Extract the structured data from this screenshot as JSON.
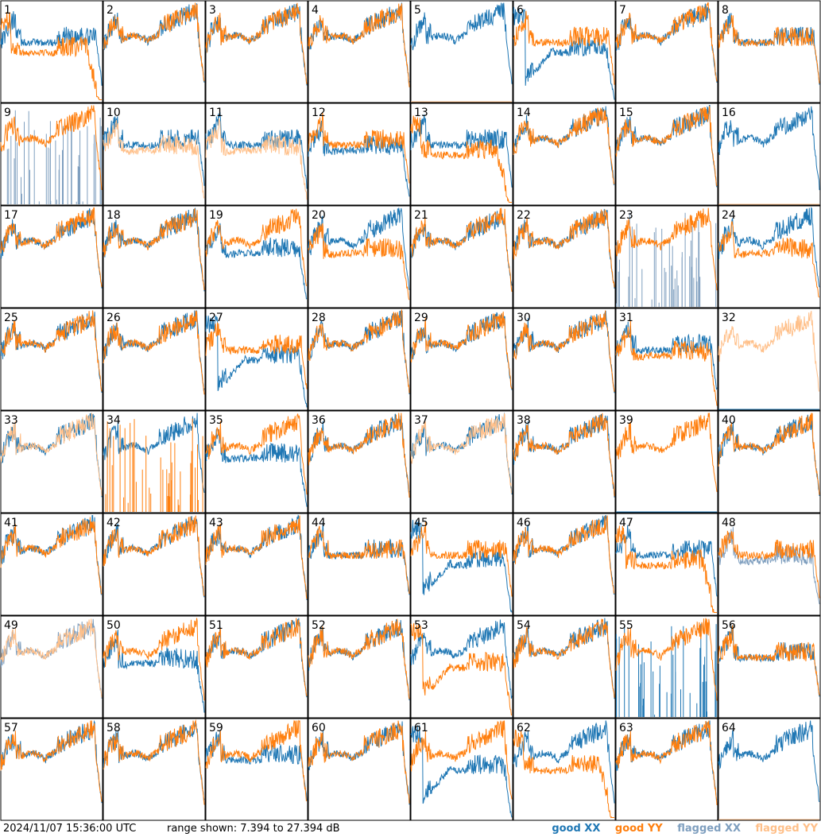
{
  "footer": {
    "timestamp": "2024/11/07 15:36:00 UTC",
    "range_text": "range shown: 7.394 to 27.394 dB"
  },
  "legend": {
    "good_xx": "good XX",
    "good_yy": "good YY",
    "flagged_xx": "flagged XX",
    "flagged_yy": "flagged YY"
  },
  "colors": {
    "good_xx": "#1f77b4",
    "good_yy": "#ff7f0e",
    "flagged_xx": "#7f9fbf",
    "flagged_yy": "#ffc08a",
    "frame": "#000000"
  },
  "chart_data": {
    "type": "line",
    "grid": "8x8 small multiples",
    "ylim": [
      7.394,
      27.394
    ],
    "yunit": "dB",
    "panels": [
      {
        "id": "1",
        "xx": "mid",
        "yy": "cliff"
      },
      {
        "id": "2",
        "xx": "std",
        "yy": "std"
      },
      {
        "id": "3",
        "xx": "std",
        "yy": "std"
      },
      {
        "id": "4",
        "xx": "std",
        "yy": "std"
      },
      {
        "id": "5",
        "xx": "std",
        "yy": "dead",
        "yy_flag": true
      },
      {
        "id": "6",
        "xx": "deep",
        "yy": "mid"
      },
      {
        "id": "7",
        "xx": "std",
        "yy": "std"
      },
      {
        "id": "8",
        "xx": "mid",
        "yy": "mid"
      },
      {
        "id": "9",
        "xx": "spiky",
        "yy": "std",
        "xx_flag": true
      },
      {
        "id": "10",
        "xx": "mid",
        "yy": "low",
        "yy_flag": true
      },
      {
        "id": "11",
        "xx": "mid",
        "yy": "low",
        "yy_flag": true
      },
      {
        "id": "12",
        "xx": "low",
        "yy": "mid"
      },
      {
        "id": "13",
        "xx": "mid",
        "yy": "cliff"
      },
      {
        "id": "14",
        "xx": "std",
        "yy": "std"
      },
      {
        "id": "15",
        "xx": "std",
        "yy": "std"
      },
      {
        "id": "16",
        "xx": "std",
        "yy": "dead",
        "yy_flag": true
      },
      {
        "id": "17",
        "xx": "std",
        "yy": "std"
      },
      {
        "id": "18",
        "xx": "std",
        "yy": "std"
      },
      {
        "id": "19",
        "xx": "low",
        "yy": "std"
      },
      {
        "id": "20",
        "xx": "std",
        "yy": "low"
      },
      {
        "id": "21",
        "xx": "std",
        "yy": "std"
      },
      {
        "id": "22",
        "xx": "std",
        "yy": "std"
      },
      {
        "id": "23",
        "xx": "spiky",
        "yy": "std",
        "xx_flag": true
      },
      {
        "id": "24",
        "xx": "std",
        "yy": "low"
      },
      {
        "id": "25",
        "xx": "std",
        "yy": "std"
      },
      {
        "id": "26",
        "xx": "std",
        "yy": "std"
      },
      {
        "id": "27",
        "xx": "deep",
        "yy": "mid"
      },
      {
        "id": "28",
        "xx": "std",
        "yy": "std"
      },
      {
        "id": "29",
        "xx": "std",
        "yy": "std"
      },
      {
        "id": "30",
        "xx": "std",
        "yy": "std"
      },
      {
        "id": "31",
        "xx": "mid",
        "yy": "low"
      },
      {
        "id": "32",
        "xx": "dead",
        "yy": "std",
        "yy_flag": true
      },
      {
        "id": "33",
        "xx": "std",
        "yy": "std",
        "yy_flag": true
      },
      {
        "id": "34",
        "xx": "std",
        "yy": "spiky"
      },
      {
        "id": "35",
        "xx": "low",
        "yy": "std"
      },
      {
        "id": "36",
        "xx": "std",
        "yy": "std"
      },
      {
        "id": "37",
        "xx": "std",
        "yy": "std",
        "yy_flag": true
      },
      {
        "id": "38",
        "xx": "std",
        "yy": "std"
      },
      {
        "id": "39",
        "xx": "dead",
        "yy": "std"
      },
      {
        "id": "40",
        "xx": "std",
        "yy": "std"
      },
      {
        "id": "41",
        "xx": "std",
        "yy": "std"
      },
      {
        "id": "42",
        "xx": "std",
        "yy": "std"
      },
      {
        "id": "43",
        "xx": "std",
        "yy": "std"
      },
      {
        "id": "44",
        "xx": "mid",
        "yy": "mid"
      },
      {
        "id": "45",
        "xx": "deep",
        "yy": "mid"
      },
      {
        "id": "46",
        "xx": "std",
        "yy": "std"
      },
      {
        "id": "47",
        "xx": "mid",
        "yy": "cliff"
      },
      {
        "id": "48",
        "xx": "low",
        "yy": "mid",
        "xx_flag": true
      },
      {
        "id": "49",
        "xx": "std",
        "yy": "std",
        "xx_flag": true,
        "yy_flag": true
      },
      {
        "id": "50",
        "xx": "low",
        "yy": "std"
      },
      {
        "id": "51",
        "xx": "std",
        "yy": "std"
      },
      {
        "id": "52",
        "xx": "std",
        "yy": "std"
      },
      {
        "id": "53",
        "xx": "std",
        "yy": "deep"
      },
      {
        "id": "54",
        "xx": "std",
        "yy": "std"
      },
      {
        "id": "55",
        "xx": "spiky",
        "yy": "std"
      },
      {
        "id": "56",
        "xx": "mid",
        "yy": "mid"
      },
      {
        "id": "57",
        "xx": "std",
        "yy": "std"
      },
      {
        "id": "58",
        "xx": "std",
        "yy": "std"
      },
      {
        "id": "59",
        "xx": "mid",
        "yy": "std"
      },
      {
        "id": "60",
        "xx": "std",
        "yy": "std"
      },
      {
        "id": "61",
        "xx": "deep",
        "yy": "std"
      },
      {
        "id": "62",
        "xx": "std",
        "yy": "cliff"
      },
      {
        "id": "63",
        "xx": "std",
        "yy": "std"
      },
      {
        "id": "64",
        "xx": "std",
        "yy": "dead",
        "yy_flag": true
      }
    ]
  }
}
